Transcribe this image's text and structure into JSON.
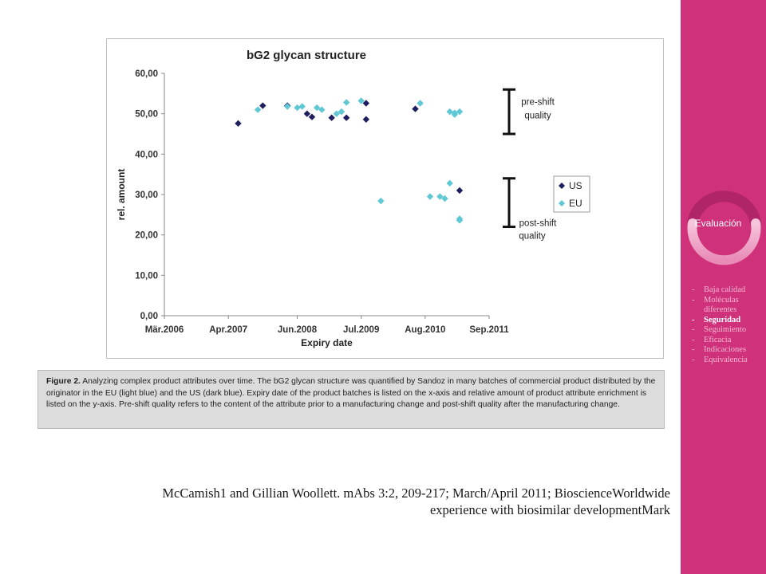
{
  "chart_data": {
    "type": "scatter",
    "title": "bG2 glycan structure",
    "xlabel": "Expiry date",
    "ylabel": "rel. amount",
    "x_ticks": [
      "Mär.2006",
      "Apr.2007",
      "Jun.2008",
      "Jul.2009",
      "Aug.2010",
      "Sep.2011"
    ],
    "y_ticks": [
      "60,00",
      "50,00",
      "40,00",
      "30,00",
      "20,00",
      "10,00",
      "0,00"
    ],
    "ylim": [
      0,
      60
    ],
    "xlim": [
      "2006-03",
      "2011-09"
    ],
    "legend_placement": "right",
    "grid": false,
    "series": [
      {
        "name": "US",
        "color": "#1f1f5e",
        "points": [
          {
            "x": "2007-06",
            "y": 47.6
          },
          {
            "x": "2007-11",
            "y": 52.0
          },
          {
            "x": "2008-04",
            "y": 52.0
          },
          {
            "x": "2008-08",
            "y": 50.0
          },
          {
            "x": "2008-09",
            "y": 49.2
          },
          {
            "x": "2009-01",
            "y": 49.0
          },
          {
            "x": "2009-04",
            "y": 49.0
          },
          {
            "x": "2009-08",
            "y": 52.6
          },
          {
            "x": "2009-08",
            "y": 48.6
          },
          {
            "x": "2010-06",
            "y": 51.2
          },
          {
            "x": "2011-03",
            "y": 31.0
          }
        ]
      },
      {
        "name": "EU",
        "color": "#5fc8d4",
        "points": [
          {
            "x": "2007-10",
            "y": 51.0
          },
          {
            "x": "2008-04",
            "y": 51.8
          },
          {
            "x": "2008-06",
            "y": 51.5
          },
          {
            "x": "2008-07",
            "y": 51.8
          },
          {
            "x": "2008-10",
            "y": 51.5
          },
          {
            "x": "2008-11",
            "y": 51.0
          },
          {
            "x": "2009-02",
            "y": 50.0
          },
          {
            "x": "2009-03",
            "y": 50.5
          },
          {
            "x": "2009-04",
            "y": 52.8
          },
          {
            "x": "2009-07",
            "y": 53.2
          },
          {
            "x": "2009-11",
            "y": 28.4
          },
          {
            "x": "2010-07",
            "y": 52.6
          },
          {
            "x": "2010-09",
            "y": 29.5
          },
          {
            "x": "2010-11",
            "y": 29.5
          },
          {
            "x": "2010-12",
            "y": 29.0
          },
          {
            "x": "2011-01",
            "y": 32.8
          },
          {
            "x": "2011-01",
            "y": 50.5
          },
          {
            "x": "2011-02",
            "y": 50.2
          },
          {
            "x": "2011-02",
            "y": 49.8
          },
          {
            "x": "2011-03",
            "y": 50.5
          },
          {
            "x": "2011-03",
            "y": 24.0
          },
          {
            "x": "2011-03",
            "y": 23.6
          }
        ]
      }
    ],
    "annotations": {
      "pre_shift": [
        "pre-shift",
        "quality"
      ],
      "post_shift": [
        "post-shift",
        "quality"
      ],
      "pre_range": [
        45,
        56
      ],
      "post_range": [
        22,
        34
      ]
    }
  },
  "caption": {
    "label": "Figure 2.",
    "text": " Analyzing complex product attributes over time. The bG2 glycan structure was quantified by Sandoz in many batches of commercial product distributed by the originator in the EU (light blue) and the US (dark blue). Expiry date of the product batches is listed on the x-axis and relative amount of product attribute enrichment is listed on the y-axis. Pre-shift quality refers to the content of the attribute prior to a manufacturing change and post-shift quality after the manufacturing change."
  },
  "citation": {
    "line1": "McCamish1 and Gillian Woollett. mAbs 3:2, 209-217; March/April 2011; BioscienceWorldwide",
    "line2": "experience with biosimilar developmentMark"
  },
  "sidebar": {
    "ring_label": "Evaluación",
    "accent_color": "#d0317b",
    "items": [
      {
        "label": "Baja calidad",
        "active": false
      },
      {
        "label": "Moléculas diferentes",
        "active": false
      },
      {
        "label": "Seguridad",
        "active": true
      },
      {
        "label": "Seguimiento",
        "active": false
      },
      {
        "label": "Eficacia",
        "active": false
      },
      {
        "label": "Indicaciones",
        "active": false
      },
      {
        "label": "Equivalencia",
        "active": false
      }
    ]
  }
}
